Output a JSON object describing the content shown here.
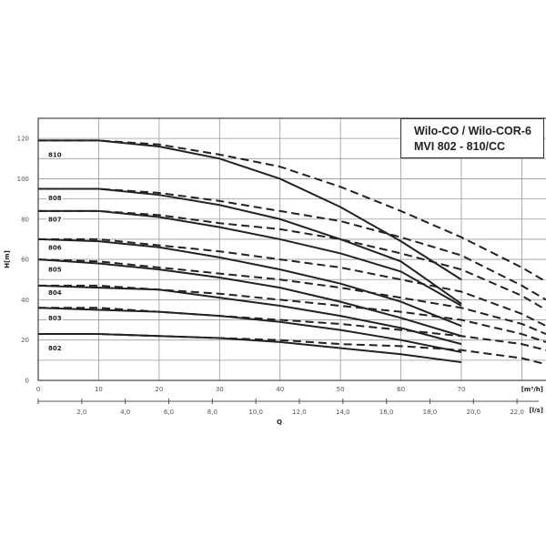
{
  "chart_data": {
    "type": "line",
    "title": [
      "Wilo-CO / Wilo-COR-6",
      "MVI 802 - 810/CC"
    ],
    "xlabel": "Q",
    "ylabel": "H[m]",
    "x_unit_primary": "[m³/h]",
    "x_unit_secondary": "[l/s]",
    "xlim": [
      0,
      84
    ],
    "ylim": [
      0,
      130
    ],
    "y_ticks": [
      "0",
      "20",
      "40",
      "60",
      "80",
      "100",
      "120"
    ],
    "x_ticks": [
      "0",
      "10",
      "20",
      "30",
      "40",
      "50",
      "60",
      "70"
    ],
    "x_ticks_ls": [
      "2,0",
      "4,0",
      "6,0",
      "8,0",
      "10,0",
      "12,0",
      "14,0",
      "16,0",
      "18,0",
      "20,0",
      "22,0"
    ],
    "grid": true,
    "x_solid": [
      0,
      10,
      20,
      30,
      40,
      50,
      60,
      70
    ],
    "x_dashed": [
      0,
      10,
      20,
      30,
      40,
      50,
      60,
      70,
      80,
      84
    ],
    "series": [
      {
        "name": "810",
        "solid": [
          119,
          119,
          116,
          110,
          100,
          86,
          69,
          50
        ],
        "dashed": [
          119,
          119,
          117,
          112,
          106,
          96,
          84,
          71,
          56,
          49
        ]
      },
      {
        "name": "808",
        "solid": [
          95,
          95,
          92,
          87,
          80,
          70,
          59,
          38
        ],
        "dashed": [
          95,
          95,
          93,
          89,
          84,
          79,
          71,
          62,
          47,
          40
        ]
      },
      {
        "name": "807",
        "solid": [
          84,
          84,
          81,
          76,
          70,
          63,
          54,
          37
        ],
        "dashed": [
          84,
          84,
          82,
          78,
          75,
          70,
          63,
          55,
          42,
          35
        ]
      },
      {
        "name": "806",
        "solid": [
          70,
          69,
          66,
          61,
          55,
          48,
          39,
          27
        ],
        "dashed": [
          70,
          70,
          67,
          64,
          60,
          56,
          50,
          44,
          33,
          27
        ]
      },
      {
        "name": "805",
        "solid": [
          60,
          58,
          55,
          51,
          46,
          39,
          31,
          22
        ],
        "dashed": [
          60,
          59,
          56,
          53,
          50,
          46,
          41,
          36,
          28,
          23
        ]
      },
      {
        "name": "804",
        "solid": [
          47,
          46,
          45,
          41,
          37,
          32,
          26,
          18
        ],
        "dashed": [
          47,
          47,
          45,
          43,
          40,
          37,
          34,
          30,
          23,
          19
        ]
      },
      {
        "name": "803",
        "solid": [
          36,
          35,
          34,
          32,
          29,
          25,
          20,
          14
        ],
        "dashed": [
          36,
          36,
          34,
          32,
          30,
          28,
          25,
          22,
          18,
          15
        ]
      },
      {
        "name": "802",
        "solid": [
          23,
          23,
          22,
          21,
          19,
          16,
          13,
          9
        ],
        "dashed": [
          23,
          23,
          22,
          21,
          20,
          18,
          17,
          15,
          11,
          8
        ]
      }
    ]
  }
}
